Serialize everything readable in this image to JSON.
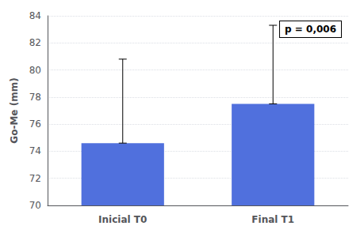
{
  "chart_data": {
    "type": "bar",
    "categories": [
      "Inicial T0",
      "Final T1"
    ],
    "values": [
      74.6,
      77.5
    ],
    "errors_up": [
      6.2,
      5.8
    ],
    "errors_down": [
      0.0,
      0.0
    ],
    "ylabel": "Go-Me (mm)",
    "ylim": [
      70,
      84
    ],
    "yticks": [
      70,
      72,
      74,
      76,
      78,
      80,
      82,
      84
    ],
    "grid": true,
    "annotations": [
      "p = 0,006"
    ]
  }
}
